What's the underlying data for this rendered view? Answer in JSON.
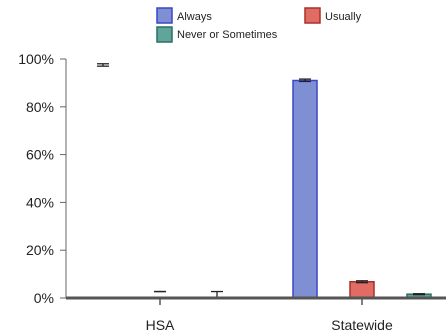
{
  "chart_data": {
    "type": "bar",
    "categories": [
      "HSA",
      "Statewide"
    ],
    "series": [
      {
        "name": "Always",
        "color": "#7f8fd4",
        "stroke": "#3b45c8",
        "values": [
          null,
          91.0
        ],
        "err_bars": [
          [
            97.0,
            98.0
          ],
          [
            90.6,
            91.6
          ]
        ]
      },
      {
        "name": "Usually",
        "color": "#e06c64",
        "stroke": "#a8302b",
        "values": [
          null,
          6.8
        ],
        "err_bars": [
          [
            2.7,
            2.7
          ],
          [
            6.4,
            7.2
          ]
        ]
      },
      {
        "name": "Never or Sometimes",
        "color": "#5fa59a",
        "stroke": "#2c6f66",
        "values": [
          null,
          1.6
        ],
        "err_bars": [
          [
            0.3,
            2.7
          ],
          [
            1.4,
            1.8
          ]
        ]
      }
    ],
    "y_ticks": [
      0,
      20,
      40,
      60,
      80,
      100
    ],
    "y_tick_labels": [
      "0%",
      "20%",
      "40%",
      "60%",
      "80%",
      "100%"
    ],
    "ylim": [
      0,
      100
    ],
    "legend_position": "top",
    "grid": false
  }
}
